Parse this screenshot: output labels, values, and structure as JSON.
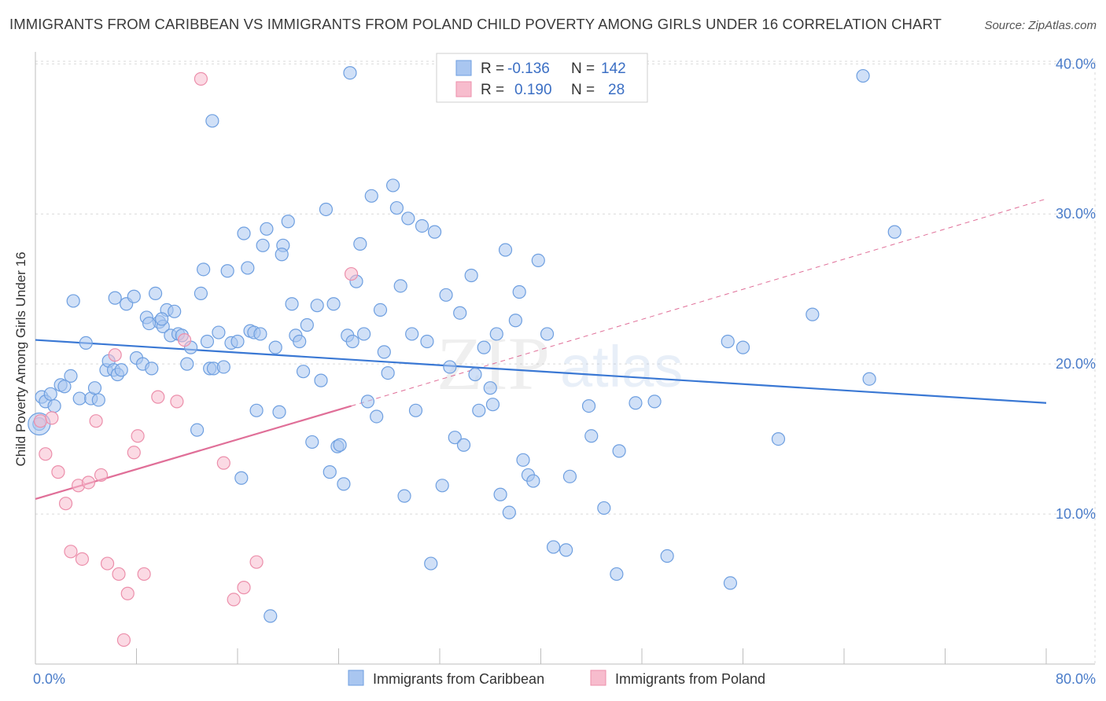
{
  "header": {
    "title": "IMMIGRANTS FROM CARIBBEAN VS IMMIGRANTS FROM POLAND CHILD POVERTY AMONG GIRLS UNDER 16 CORRELATION CHART",
    "source": "Source: ZipAtlas.com"
  },
  "watermark": {
    "zip": "ZIP",
    "atlas": "atlas"
  },
  "colors": {
    "caribbean_fill": "#a9c6f0",
    "caribbean_stroke": "#6e9fe0",
    "caribbean_line": "#3a78d4",
    "poland_fill": "#f7bccd",
    "poland_stroke": "#ec8fab",
    "poland_line": "#e06f98",
    "grid": "#d9d9d9",
    "tick_text": "#4a7cc9"
  },
  "legend": {
    "r_label": "R =",
    "n_label": "N =",
    "rows": [
      {
        "series": "caribbean",
        "r": "-0.136",
        "n": "142"
      },
      {
        "series": "poland",
        "r": "0.190",
        "n": "28"
      }
    ]
  },
  "chart_data": {
    "type": "scatter",
    "title": "IMMIGRANTS FROM CARIBBEAN VS IMMIGRANTS FROM POLAND CHILD POVERTY AMONG GIRLS UNDER 16 CORRELATION CHART",
    "xlabel": "",
    "ylabel": "Child Poverty Among Girls Under 16",
    "xlim": [
      0,
      80
    ],
    "ylim": [
      0,
      40.8
    ],
    "x_tick_labels": [
      {
        "value": 0,
        "label": "0.0%"
      },
      {
        "value": 80,
        "label": "80.0%"
      }
    ],
    "y_tick_labels": [
      {
        "value": 10,
        "label": "10.0%"
      },
      {
        "value": 20,
        "label": "20.0%"
      },
      {
        "value": 30,
        "label": "30.0%"
      },
      {
        "value": 40,
        "label": "40.0%"
      }
    ],
    "x_minor_ticks": [
      0,
      8,
      16,
      24,
      32,
      40,
      48,
      56,
      64,
      72,
      80
    ],
    "grid": true,
    "legend_position": "top-center",
    "series": [
      {
        "name": "Immigrants from Caribbean",
        "color": "#a9c6f0",
        "trend": {
          "x": [
            0,
            80
          ],
          "y": [
            21.6,
            17.4
          ]
        },
        "points": [
          [
            0.3,
            16.0
          ],
          [
            0.5,
            17.8
          ],
          [
            0.8,
            17.5
          ],
          [
            1.2,
            18.0
          ],
          [
            1.5,
            17.2
          ],
          [
            2.0,
            18.6
          ],
          [
            2.3,
            18.5
          ],
          [
            2.8,
            19.2
          ],
          [
            3.5,
            17.7
          ],
          [
            4.0,
            21.4
          ],
          [
            4.4,
            17.7
          ],
          [
            4.7,
            18.4
          ],
          [
            5.0,
            17.6
          ],
          [
            5.6,
            19.6
          ],
          [
            5.8,
            20.2
          ],
          [
            6.2,
            19.6
          ],
          [
            6.5,
            19.3
          ],
          [
            6.8,
            19.6
          ],
          [
            3.0,
            24.2
          ],
          [
            6.3,
            24.4
          ],
          [
            7.2,
            24.0
          ],
          [
            7.8,
            24.5
          ],
          [
            8.0,
            20.4
          ],
          [
            8.5,
            20.0
          ],
          [
            8.8,
            23.1
          ],
          [
            9.2,
            19.7
          ],
          [
            9.5,
            24.7
          ],
          [
            9.8,
            22.8
          ],
          [
            10.1,
            22.5
          ],
          [
            10.4,
            23.6
          ],
          [
            10.7,
            21.9
          ],
          [
            11.0,
            23.5
          ],
          [
            11.3,
            22.0
          ],
          [
            11.6,
            21.9
          ],
          [
            12.0,
            20.0
          ],
          [
            12.3,
            21.1
          ],
          [
            12.8,
            15.6
          ],
          [
            13.1,
            24.7
          ],
          [
            13.3,
            26.3
          ],
          [
            13.6,
            21.5
          ],
          [
            13.8,
            19.7
          ],
          [
            14.1,
            19.7
          ],
          [
            14.5,
            22.1
          ],
          [
            14.9,
            19.8
          ],
          [
            15.2,
            26.2
          ],
          [
            15.5,
            21.4
          ],
          [
            16.0,
            21.5
          ],
          [
            16.3,
            12.4
          ],
          [
            16.5,
            28.7
          ],
          [
            16.8,
            26.4
          ],
          [
            17.0,
            22.2
          ],
          [
            17.3,
            22.1
          ],
          [
            17.5,
            16.9
          ],
          [
            17.8,
            22.0
          ],
          [
            18.0,
            27.9
          ],
          [
            18.3,
            29.0
          ],
          [
            18.6,
            3.2
          ],
          [
            19.0,
            21.1
          ],
          [
            19.3,
            16.8
          ],
          [
            19.6,
            27.9
          ],
          [
            20.0,
            29.5
          ],
          [
            20.3,
            24.0
          ],
          [
            20.6,
            21.9
          ],
          [
            20.9,
            21.5
          ],
          [
            21.2,
            19.5
          ],
          [
            21.5,
            22.6
          ],
          [
            21.9,
            14.8
          ],
          [
            22.3,
            23.9
          ],
          [
            22.6,
            18.9
          ],
          [
            23.0,
            30.3
          ],
          [
            23.3,
            12.8
          ],
          [
            23.6,
            24.0
          ],
          [
            23.9,
            14.5
          ],
          [
            24.1,
            14.6
          ],
          [
            24.4,
            12.0
          ],
          [
            24.7,
            21.9
          ],
          [
            25.1,
            21.5
          ],
          [
            25.4,
            25.5
          ],
          [
            25.7,
            28.0
          ],
          [
            26.0,
            22.0
          ],
          [
            26.3,
            17.5
          ],
          [
            26.6,
            31.2
          ],
          [
            27.0,
            16.5
          ],
          [
            27.3,
            23.6
          ],
          [
            27.6,
            20.8
          ],
          [
            27.9,
            19.4
          ],
          [
            28.3,
            31.9
          ],
          [
            28.6,
            30.4
          ],
          [
            28.9,
            25.2
          ],
          [
            29.2,
            11.2
          ],
          [
            29.5,
            29.7
          ],
          [
            29.8,
            22.0
          ],
          [
            30.1,
            16.9
          ],
          [
            30.6,
            29.2
          ],
          [
            31.0,
            21.5
          ],
          [
            31.3,
            6.7
          ],
          [
            31.6,
            28.8
          ],
          [
            32.2,
            11.9
          ],
          [
            32.5,
            24.6
          ],
          [
            32.8,
            19.8
          ],
          [
            33.2,
            15.1
          ],
          [
            33.6,
            23.4
          ],
          [
            33.9,
            14.6
          ],
          [
            34.5,
            25.9
          ],
          [
            34.8,
            19.3
          ],
          [
            35.1,
            16.9
          ],
          [
            35.5,
            21.1
          ],
          [
            36.0,
            18.4
          ],
          [
            36.2,
            17.3
          ],
          [
            36.5,
            22.0
          ],
          [
            36.8,
            11.3
          ],
          [
            37.2,
            27.6
          ],
          [
            37.5,
            10.1
          ],
          [
            38.0,
            22.9
          ],
          [
            38.3,
            24.8
          ],
          [
            38.6,
            13.6
          ],
          [
            39.0,
            12.6
          ],
          [
            39.4,
            12.2
          ],
          [
            39.8,
            26.9
          ],
          [
            40.5,
            22.0
          ],
          [
            41.0,
            7.8
          ],
          [
            42.0,
            7.6
          ],
          [
            42.3,
            12.5
          ],
          [
            43.8,
            17.2
          ],
          [
            44.0,
            15.2
          ],
          [
            45.0,
            10.4
          ],
          [
            46.0,
            6.0
          ],
          [
            46.2,
            14.2
          ],
          [
            47.5,
            17.4
          ],
          [
            49.0,
            17.5
          ],
          [
            50.0,
            7.2
          ],
          [
            54.8,
            21.5
          ],
          [
            55.0,
            5.4
          ],
          [
            56.0,
            21.1
          ],
          [
            58.8,
            15.0
          ],
          [
            61.5,
            23.3
          ],
          [
            65.5,
            39.2
          ],
          [
            66.0,
            19.0
          ],
          [
            68.0,
            28.8
          ],
          [
            24.9,
            39.4
          ],
          [
            14.0,
            36.2
          ],
          [
            10.0,
            23.0
          ],
          [
            9.0,
            22.7
          ],
          [
            19.5,
            27.3
          ]
        ]
      },
      {
        "name": "Immigrants from Poland",
        "color": "#f7bccd",
        "trend": {
          "x": [
            0,
            25.0
          ],
          "y": [
            11.0,
            17.2
          ]
        },
        "trend_extension": {
          "x": [
            25.0,
            80
          ],
          "y": [
            17.2,
            31.0
          ]
        },
        "points": [
          [
            0.4,
            16.2
          ],
          [
            0.8,
            14.0
          ],
          [
            1.3,
            16.4
          ],
          [
            1.8,
            12.8
          ],
          [
            2.4,
            10.7
          ],
          [
            2.8,
            7.5
          ],
          [
            3.4,
            11.9
          ],
          [
            3.7,
            7.0
          ],
          [
            4.2,
            12.1
          ],
          [
            4.8,
            16.2
          ],
          [
            5.2,
            12.6
          ],
          [
            5.7,
            6.7
          ],
          [
            6.3,
            20.6
          ],
          [
            6.6,
            6.0
          ],
          [
            7.3,
            4.7
          ],
          [
            7.8,
            14.1
          ],
          [
            8.1,
            15.2
          ],
          [
            8.6,
            6.0
          ],
          [
            9.7,
            17.8
          ],
          [
            11.2,
            17.5
          ],
          [
            11.8,
            21.6
          ],
          [
            13.1,
            39.0
          ],
          [
            14.9,
            13.4
          ],
          [
            15.7,
            4.3
          ],
          [
            16.5,
            5.1
          ],
          [
            17.5,
            6.8
          ],
          [
            25.0,
            26.0
          ],
          [
            7.0,
            1.6
          ]
        ]
      }
    ]
  },
  "bottom_legend": {
    "items": [
      {
        "series": "caribbean",
        "label": "Immigrants from Caribbean"
      },
      {
        "series": "poland",
        "label": "Immigrants from Poland"
      }
    ]
  }
}
